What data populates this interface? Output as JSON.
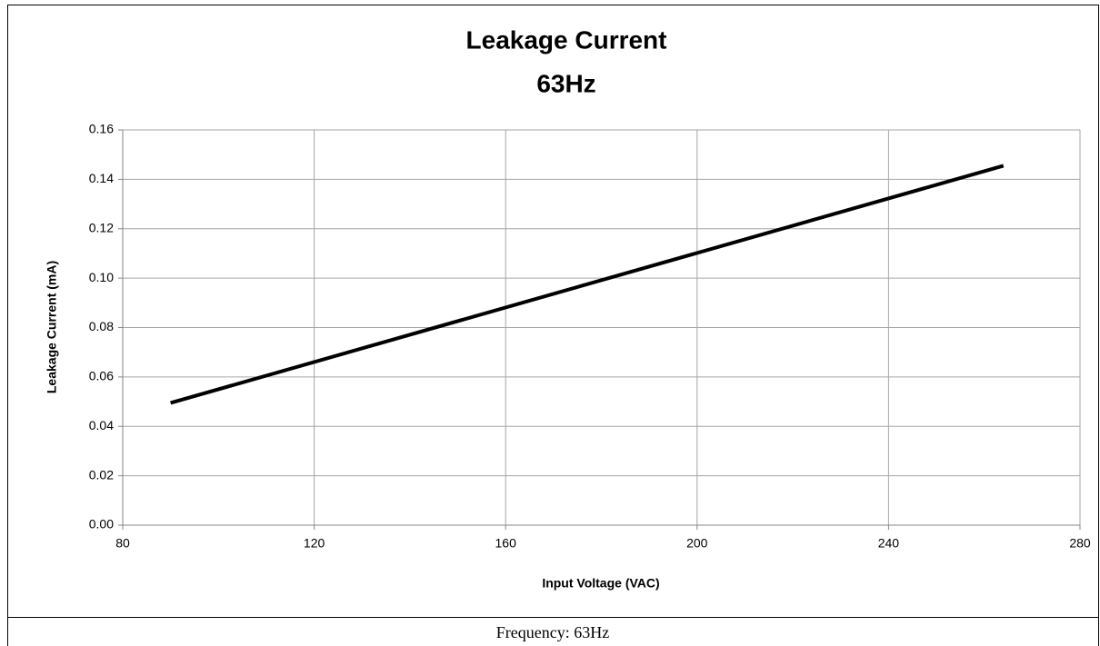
{
  "chart_data": {
    "type": "line",
    "title": "Leakage Current",
    "subtitle": "63Hz",
    "x_label": "Input Voltage (VAC)",
    "y_label": "Leakage Current (mA)",
    "x": [
      90,
      264
    ],
    "series": [
      {
        "name": "Leakage Current",
        "color": "#000000",
        "values": [
          0.0495,
          0.1455
        ]
      }
    ],
    "xlim": [
      80,
      280
    ],
    "xticks": [
      80,
      120,
      160,
      200,
      240,
      280
    ],
    "ylim": [
      0,
      0.16
    ],
    "yticks": [
      {
        "value": 0,
        "label": "0.00"
      },
      {
        "value": 0.02,
        "label": "0.02"
      },
      {
        "value": 0.04,
        "label": "0.04"
      },
      {
        "value": 0.06,
        "label": "0.06"
      },
      {
        "value": 0.08,
        "label": "0.08"
      },
      {
        "value": 0.1,
        "label": "0.10"
      },
      {
        "value": 0.12,
        "label": "0.12"
      },
      {
        "value": 0.14,
        "label": "0.14"
      },
      {
        "value": 0.16,
        "label": "0.16"
      }
    ],
    "grid": true
  },
  "caption": "Frequency: 63Hz"
}
